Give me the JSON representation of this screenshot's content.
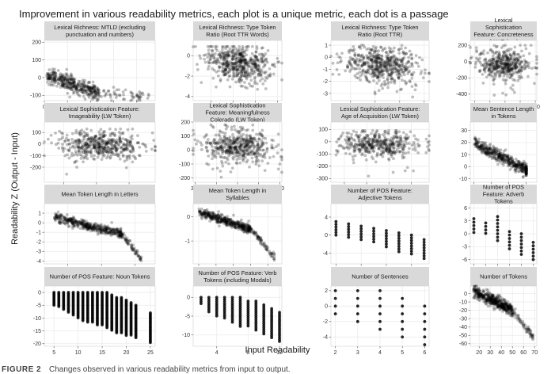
{
  "figure": {
    "title": "Improvement in various readability metrics, each plot is a unique metric, each dot is a passage",
    "ylabel": "Readability Z (Output - Input)",
    "xlabel": "Input Readability",
    "caption_label": "FIGURE 2",
    "caption_text": "Changes observed in various readability metrics from input to output."
  },
  "chart_data": [
    {
      "type": "scatter",
      "title": "Lexical Richness: MTLD (excluding punctuation and numbers)",
      "xlim": [
        0,
        240
      ],
      "ylim": [
        -130,
        210
      ],
      "xticks": [
        0,
        50,
        100,
        150,
        200
      ],
      "yticks": [
        -100,
        0,
        100,
        200
      ],
      "pattern": {
        "shape": "diagonal",
        "x0": 5,
        "x1": 120,
        "ytop": 10,
        "ybot": -90,
        "spread": 45,
        "tail_to": 230,
        "tail_y": -110,
        "n": 420
      }
    },
    {
      "type": "scatter",
      "title": "Lexical Richness: Type Token Ratio (Root TTR Words)",
      "xlim": [
        2.2,
        6.2
      ],
      "ylim": [
        -4.4,
        1.5
      ],
      "xticks": [
        3,
        4,
        5,
        6
      ],
      "yticks": [
        -4,
        -2,
        0
      ],
      "pattern": {
        "shape": "cloud",
        "x0": 2.6,
        "x1": 5.9,
        "ytop": 0.9,
        "ybot": -3.8,
        "center": -0.8,
        "spread": 0.9,
        "slope": -0.5,
        "n": 520
      }
    },
    {
      "type": "scatter",
      "title": "Lexical Richness: Type Token Ratio (Root TTR)",
      "xlim": [
        2.2,
        6.2
      ],
      "ylim": [
        -3.6,
        1.4
      ],
      "xticks": [
        3,
        4,
        5,
        6
      ],
      "yticks": [
        -3,
        -2,
        -1,
        0,
        1
      ],
      "pattern": {
        "shape": "cloud",
        "x0": 2.6,
        "x1": 5.9,
        "ytop": 1.0,
        "ybot": -3.3,
        "center": -0.6,
        "spread": 0.75,
        "slope": -0.45,
        "n": 520
      }
    },
    {
      "type": "scatter",
      "title": "Lexical Sophistication Feature: Concreteness (LW Token)",
      "xlim": [
        170,
        610
      ],
      "ylim": [
        -480,
        260
      ],
      "xticks": [
        200,
        300,
        400,
        500,
        600
      ],
      "yticks": [
        -400,
        -200,
        0,
        200
      ],
      "pattern": {
        "shape": "cloud",
        "x0": 200,
        "x1": 590,
        "ytop": 200,
        "ybot": -420,
        "center": -30,
        "spread": 90,
        "slope": -0.1,
        "n": 420
      }
    },
    {
      "type": "scatter",
      "title": "Lexical Sophistication Feature: Imageability (LW Token)",
      "xlim": [
        240,
        580
      ],
      "ylim": [
        -330,
        190
      ],
      "xticks": [
        300,
        400,
        500
      ],
      "yticks": [
        -200,
        -100,
        0,
        100
      ],
      "pattern": {
        "shape": "cloud",
        "x0": 270,
        "x1": 560,
        "ytop": 130,
        "ybot": -290,
        "center": -10,
        "spread": 60,
        "slope": -0.15,
        "n": 470
      }
    },
    {
      "type": "scatter",
      "title": "Lexical Sophistication Feature: Meaningfulness Colerado (LW Token)",
      "xlim": [
        295,
        505
      ],
      "ylim": [
        -230,
        200
      ],
      "xticks": [
        300,
        350,
        400,
        450,
        500
      ],
      "yticks": [
        -200,
        -100,
        0,
        100,
        200
      ],
      "pattern": {
        "shape": "cloud",
        "x0": 310,
        "x1": 495,
        "ytop": 180,
        "ybot": -210,
        "center": 20,
        "spread": 55,
        "slope": -0.2,
        "n": 470
      }
    },
    {
      "type": "scatter",
      "title": "Lexical Sophistication Feature: Age of Acquisition (LW Token)",
      "xlim": [
        140,
        580
      ],
      "ylim": [
        -330,
        160
      ],
      "xticks": [
        200,
        300,
        400,
        500
      ],
      "yticks": [
        -300,
        -200,
        -100,
        0,
        100
      ],
      "pattern": {
        "shape": "cloud",
        "x0": 160,
        "x1": 560,
        "ytop": 90,
        "ybot": -280,
        "center": -20,
        "spread": 55,
        "slope": -0.1,
        "n": 420
      }
    },
    {
      "type": "scatter",
      "title": "Mean Sentence Length in Tokens",
      "xlim": [
        4,
        23
      ],
      "ylim": [
        -13,
        37
      ],
      "xticks": [
        5,
        10,
        15,
        20
      ],
      "yticks": [
        -10,
        0,
        10,
        20,
        30
      ],
      "pattern": {
        "shape": "diagonal",
        "x0": 5,
        "x1": 20,
        "ytop": 20,
        "ybot": -3,
        "spread": 5,
        "tail_to": 20,
        "tail_y": -8,
        "n": 460
      }
    },
    {
      "type": "scatter",
      "title": "Mean Token Length in Letters",
      "xlim": [
        3.3,
        6.6
      ],
      "ylim": [
        -4.3,
        2.0
      ],
      "xticks": [
        4,
        5,
        6
      ],
      "yticks": [
        -4,
        -3,
        -2,
        -1,
        0,
        1
      ],
      "pattern": {
        "shape": "diagonal",
        "x0": 3.6,
        "x1": 5.6,
        "ytop": 0.6,
        "ybot": -1.2,
        "spread": 0.5,
        "tail_to": 6.2,
        "tail_y": -3.8,
        "n": 480
      }
    },
    {
      "type": "scatter",
      "title": "Mean Token Length in Syllables",
      "xlim": [
        0.92,
        2.2
      ],
      "ylim": [
        -1.95,
        0.55
      ],
      "xticks": [
        1.0,
        1.25,
        1.5,
        1.75,
        2.0
      ],
      "xtick_labels": [
        "1.00",
        "1.25",
        "1.50",
        "1.75",
        "2.00"
      ],
      "yticks": [
        -1,
        0
      ],
      "pattern": {
        "shape": "diagonal",
        "x0": 1.0,
        "x1": 1.75,
        "ytop": 0.2,
        "ybot": -0.5,
        "spread": 0.18,
        "tail_to": 2.1,
        "tail_y": -1.7,
        "n": 480
      }
    },
    {
      "type": "scatter",
      "title": "Number of POS Feature: Adjective Tokens",
      "xlim": [
        -0.4,
        7.4
      ],
      "ylim": [
        -6.4,
        7.0
      ],
      "xticks": [
        0,
        2,
        4,
        6
      ],
      "yticks": [
        -4,
        0,
        4
      ],
      "pattern": {
        "shape": "columns",
        "xs": [
          0,
          1,
          2,
          3,
          4,
          5,
          6,
          7
        ],
        "ytop": [
          3,
          2.5,
          2,
          1.5,
          1,
          0.5,
          0,
          -1
        ],
        "ybot": [
          0,
          -1,
          -1.5,
          -2,
          -3,
          -4,
          -4.5,
          -5.5
        ],
        "step": 0.6
      }
    },
    {
      "type": "scatter",
      "title": "Number of POS Feature: Adverb Tokens",
      "xlim": [
        -0.3,
        5.3
      ],
      "ylim": [
        -7.0,
        7.0
      ],
      "xticks": [
        0,
        1,
        2,
        3,
        4,
        5
      ],
      "yticks": [
        -6,
        -3,
        0,
        3,
        6
      ],
      "pattern": {
        "shape": "columns",
        "xs": [
          0,
          1,
          2,
          3,
          4,
          5
        ],
        "ytop": [
          3.5,
          2.5,
          4,
          0.5,
          0,
          -2
        ],
        "ybot": [
          0,
          0,
          -2,
          -4,
          -5,
          -6
        ],
        "step": 0.8
      }
    },
    {
      "type": "scatter",
      "title": "Number of POS Feature: Noun Tokens",
      "xlim": [
        3,
        26
      ],
      "ylim": [
        -21,
        2.5
      ],
      "xticks": [
        5,
        10,
        15,
        20,
        25
      ],
      "yticks": [
        -20,
        -15,
        -10,
        -5,
        0
      ],
      "pattern": {
        "shape": "columns",
        "xs": [
          5,
          6,
          7,
          8,
          9,
          10,
          11,
          12,
          13,
          14,
          15,
          16,
          17,
          18,
          19,
          20,
          21,
          22,
          25
        ],
        "ytop": [
          0,
          0,
          0,
          0,
          0,
          0,
          0,
          0,
          0,
          0,
          0,
          0,
          -1,
          -2,
          -2,
          -3,
          -4,
          -5,
          -8
        ],
        "ybot": [
          -5,
          -6,
          -7,
          -8,
          -9,
          -10,
          -11,
          -12,
          -12,
          -13,
          -13,
          -14,
          -15,
          -16,
          -16,
          -17,
          -17,
          -18,
          -20
        ],
        "step": 0.55
      }
    },
    {
      "type": "scatter",
      "title": "Number of POS Feature: Verb Tokens (including Modals)",
      "xlim": [
        1,
        12.3
      ],
      "ylim": [
        -13,
        3
      ],
      "xticks": [
        4,
        8,
        12
      ],
      "yticks": [
        -10,
        -5,
        0
      ],
      "pattern": {
        "shape": "columns",
        "xs": [
          2,
          3,
          4,
          5,
          6,
          7,
          8,
          9,
          10,
          11,
          12
        ],
        "ytop": [
          0,
          0,
          0,
          0,
          0,
          0,
          -1,
          -1,
          -2,
          -3,
          -4
        ],
        "ybot": [
          -2,
          -4,
          -5,
          -6,
          -7,
          -8,
          -8,
          -9,
          -10,
          -11,
          -12
        ],
        "step": 0.55
      }
    },
    {
      "type": "scatter",
      "title": "Number of Sentences",
      "xlim": [
        1.8,
        6.2
      ],
      "ylim": [
        -5.2,
        2.6
      ],
      "xticks": [
        2,
        3,
        4,
        5,
        6
      ],
      "yticks": [
        -4,
        -2,
        0,
        2
      ],
      "pattern": {
        "shape": "columns",
        "xs": [
          2,
          3,
          4,
          5,
          6
        ],
        "ytop": [
          2,
          2,
          2,
          1,
          0
        ],
        "ybot": [
          -1,
          -2,
          -3,
          -4,
          -5
        ],
        "step": 1.0
      }
    },
    {
      "type": "scatter",
      "title": "Number of Tokens",
      "xlim": [
        12,
        72
      ],
      "ylim": [
        -63,
        9
      ],
      "xticks": [
        20,
        30,
        40,
        50,
        60,
        70
      ],
      "yticks": [
        -60,
        -50,
        -40,
        -30,
        -20,
        -10,
        0
      ],
      "pattern": {
        "shape": "diagonal",
        "x0": 15,
        "x1": 50,
        "ytop": 3,
        "ybot": -20,
        "spread": 7,
        "tail_to": 70,
        "tail_y": -55,
        "n": 520
      }
    }
  ]
}
